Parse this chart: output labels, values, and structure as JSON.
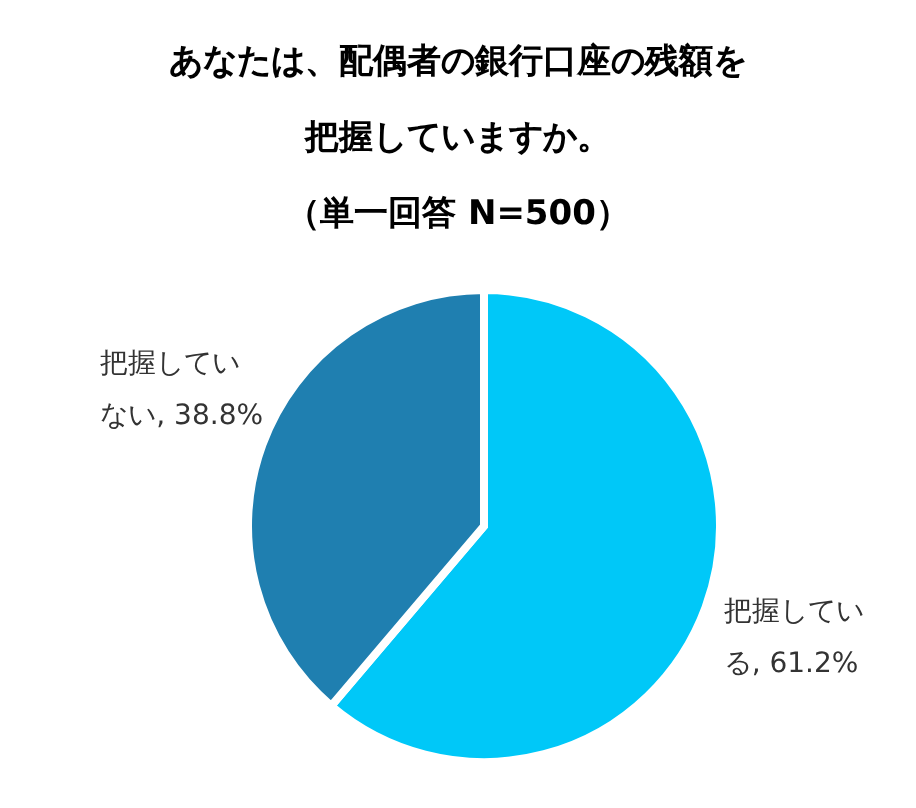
{
  "chart_data": {
    "type": "pie",
    "title": "あなたは、配偶者の銀行口座の残額を把握していますか。",
    "subtitle": "（単一回答 N=500）",
    "categories": [
      "把握している",
      "把握していない"
    ],
    "values": [
      61.2,
      38.8
    ],
    "colors": [
      "#00c8f8",
      "#1f7fb0"
    ],
    "value_labels": [
      ", 61.2%",
      ", 38.8%"
    ]
  }
}
